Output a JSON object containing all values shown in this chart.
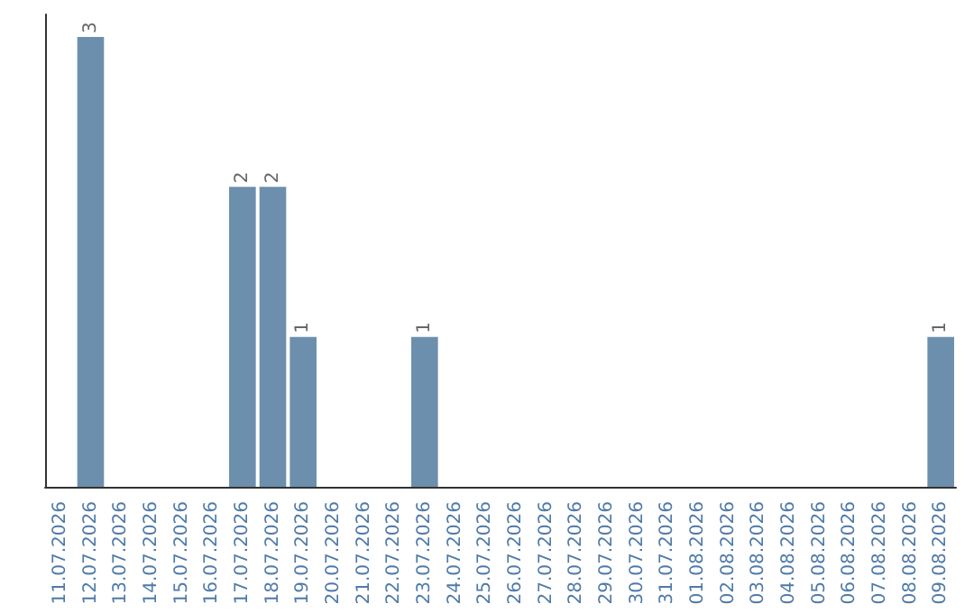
{
  "chart_data": {
    "type": "bar",
    "categories": [
      "11.07.2026",
      "12.07.2026",
      "13.07.2026",
      "14.07.2026",
      "15.07.2026",
      "16.07.2026",
      "17.07.2026",
      "18.07.2026",
      "19.07.2026",
      "20.07.2026",
      "21.07.2026",
      "22.07.2026",
      "23.07.2026",
      "24.07.2026",
      "25.07.2026",
      "26.07.2026",
      "27.07.2026",
      "28.07.2026",
      "29.07.2026",
      "30.07.2026",
      "31.07.2026",
      "01.08.2026",
      "02.08.2026",
      "03.08.2026",
      "04.08.2026",
      "05.08.2026",
      "06.08.2026",
      "07.08.2026",
      "08.08.2026",
      "09.08.2026"
    ],
    "values": [
      0,
      3,
      0,
      0,
      0,
      0,
      2,
      2,
      1,
      0,
      0,
      0,
      1,
      0,
      0,
      0,
      0,
      0,
      0,
      0,
      0,
      0,
      0,
      0,
      0,
      0,
      0,
      0,
      0,
      1
    ],
    "value_labels": [
      null,
      "3",
      null,
      null,
      null,
      null,
      "2",
      "2",
      "1",
      null,
      null,
      null,
      "1",
      null,
      null,
      null,
      null,
      null,
      null,
      null,
      null,
      null,
      null,
      null,
      null,
      null,
      null,
      null,
      null,
      "1"
    ],
    "color": "#6d8fae",
    "tick_labels": "x",
    "grid": false
  }
}
